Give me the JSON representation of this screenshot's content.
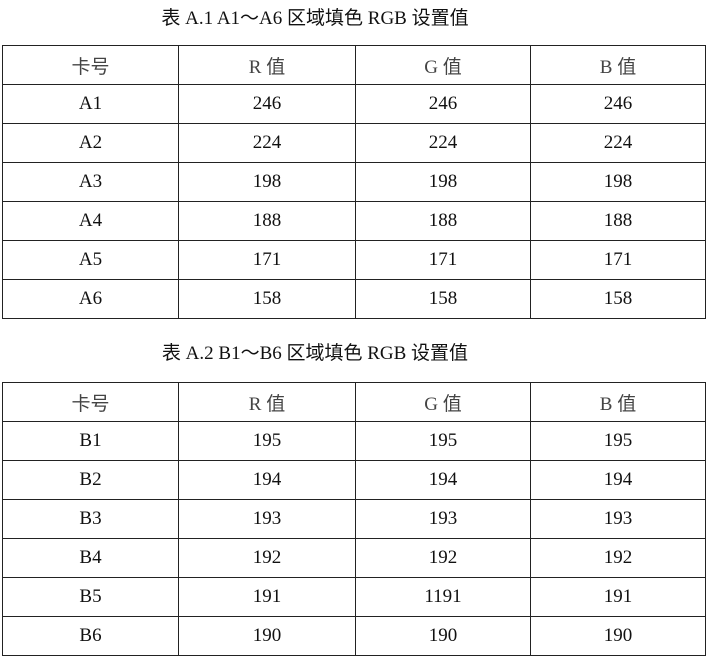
{
  "tables": [
    {
      "title": "表 A.1 A1～A6 区域填色 RGB 设置值",
      "headers": [
        "卡号",
        "R 值",
        "G 值",
        "B 值"
      ],
      "rows": [
        [
          "A1",
          "246",
          "246",
          "246"
        ],
        [
          "A2",
          "224",
          "224",
          "224"
        ],
        [
          "A3",
          "198",
          "198",
          "198"
        ],
        [
          "A4",
          "188",
          "188",
          "188"
        ],
        [
          "A5",
          "171",
          "171",
          "171"
        ],
        [
          "A6",
          "158",
          "158",
          "158"
        ]
      ]
    },
    {
      "title": "表 A.2 B1～B6 区域填色 RGB 设置值",
      "headers": [
        "卡号",
        "R 值",
        "G 值",
        "B 值"
      ],
      "rows": [
        [
          "B1",
          "195",
          "195",
          "195"
        ],
        [
          "B2",
          "194",
          "194",
          "194"
        ],
        [
          "B3",
          "193",
          "193",
          "193"
        ],
        [
          "B4",
          "192",
          "192",
          "192"
        ],
        [
          "B5",
          "191",
          "1191",
          "191"
        ],
        [
          "B6",
          "190",
          "190",
          "190"
        ]
      ]
    }
  ]
}
